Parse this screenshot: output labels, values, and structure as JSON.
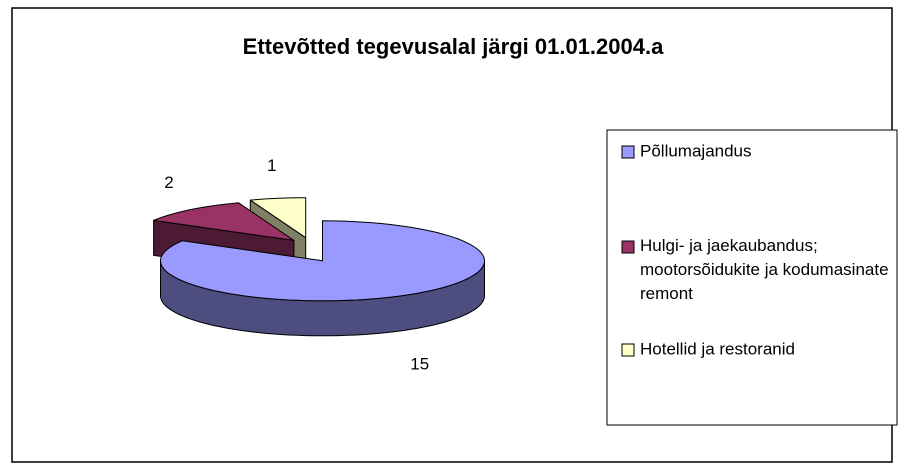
{
  "chart_data": {
    "type": "pie",
    "title": "Ettevõtted tegevusalal järgi 01.01.2004.a",
    "categories": [
      "Põllumajandus",
      "Hulgi- ja jaekaubandus; mootorsõidukite ja kodumasinate remont",
      "Hotellid ja restoranid"
    ],
    "values": [
      15,
      2,
      1
    ],
    "colors": [
      "#9999ff",
      "#993366",
      "#ffffcc"
    ],
    "legend": "right"
  }
}
